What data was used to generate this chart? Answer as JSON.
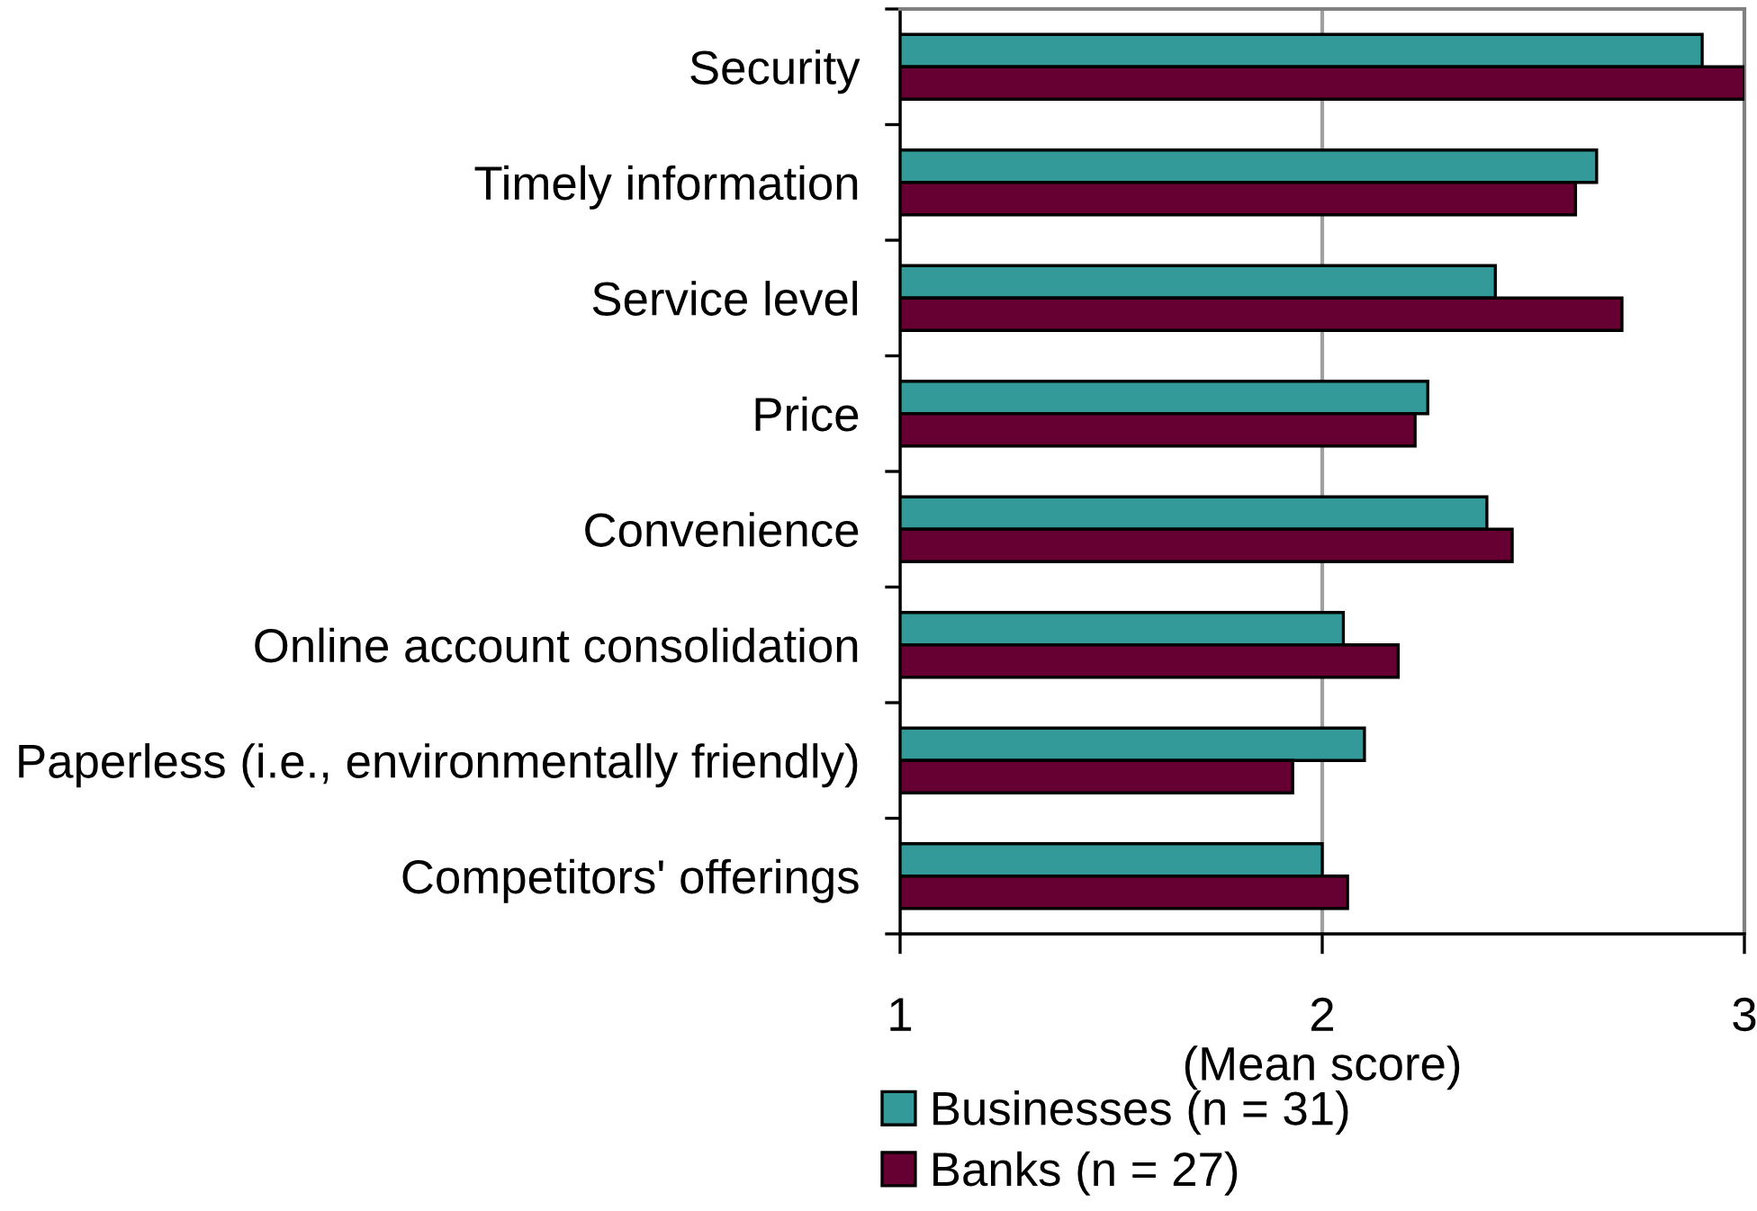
{
  "chart_data": {
    "type": "bar",
    "orientation": "horizontal",
    "xlabel": "(Mean score)",
    "categories": [
      "Security",
      "Timely information",
      "Service level",
      "Price",
      "Convenience",
      "Online account consolidation",
      "Paperless (i.e., environmentally friendly)",
      "Competitors' offerings"
    ],
    "series": [
      {
        "name": "Businesses (n = 31)",
        "color": "#339999",
        "values": [
          2.9,
          2.65,
          2.41,
          2.25,
          2.39,
          2.05,
          2.1,
          2.0
        ]
      },
      {
        "name": "Banks (n = 27)",
        "color": "#660033",
        "values": [
          3.0,
          2.6,
          2.71,
          2.22,
          2.45,
          2.18,
          1.93,
          2.06
        ]
      }
    ],
    "xlim": [
      1,
      3
    ],
    "xticks": [
      1,
      2,
      3
    ],
    "grid": "x",
    "legend": "bottom"
  }
}
